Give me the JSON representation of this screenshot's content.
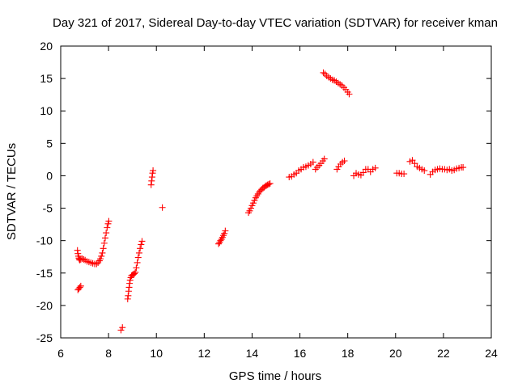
{
  "chart_data": {
    "type": "scatter",
    "title": "Day 321 of 2017, Sidereal Day-to-day VTEC variation (SDTVAR) for receiver kman",
    "xlabel": "GPS time / hours",
    "ylabel": "SDTVAR / TECUs",
    "xlim": [
      6,
      24
    ],
    "ylim": [
      -25,
      20
    ],
    "xticks": [
      6,
      8,
      10,
      12,
      14,
      16,
      18,
      20,
      22,
      24
    ],
    "yticks": [
      -25,
      -20,
      -15,
      -10,
      -5,
      0,
      5,
      10,
      15,
      20
    ],
    "grid": false,
    "marker": "plus",
    "color": "#ff0000",
    "series": [
      {
        "name": "SDTVAR",
        "segments": [
          {
            "x": [
              6.7,
              6.72,
              6.74,
              6.76,
              6.78,
              6.8,
              6.84,
              6.9,
              6.96,
              7.02,
              7.1,
              7.18,
              7.26,
              7.34,
              7.42,
              7.5,
              7.56,
              7.62,
              7.66,
              7.7,
              7.74,
              7.78,
              7.82,
              7.86,
              7.9,
              7.94,
              7.98,
              8.01
            ],
            "y": [
              -11.5,
              -12.0,
              -12.4,
              -12.7,
              -12.9,
              -13.0,
              -12.9,
              -12.8,
              -12.9,
              -13.0,
              -13.2,
              -13.3,
              -13.4,
              -13.5,
              -13.6,
              -13.6,
              -13.4,
              -13.1,
              -12.8,
              -12.4,
              -11.9,
              -11.2,
              -10.4,
              -9.6,
              -8.8,
              -8.0,
              -7.4,
              -7.0
            ]
          },
          {
            "x": [
              6.72,
              6.76,
              6.8,
              6.84
            ],
            "y": [
              -17.6,
              -17.4,
              -17.2,
              -17.0
            ]
          },
          {
            "x": [
              8.52,
              8.58
            ],
            "y": [
              -23.8,
              -23.4
            ]
          },
          {
            "x": [
              8.8,
              8.82,
              8.84,
              8.86,
              8.88,
              8.9,
              8.93,
              8.96,
              9.0,
              9.04,
              9.08,
              9.12,
              9.16,
              9.2,
              9.24,
              9.28,
              9.32,
              9.36,
              9.4
            ],
            "y": [
              -19.0,
              -18.5,
              -17.8,
              -17.2,
              -16.6,
              -16.1,
              -15.7,
              -15.4,
              -15.3,
              -15.2,
              -15.1,
              -14.9,
              -14.2,
              -13.4,
              -12.6,
              -11.9,
              -11.2,
              -10.6,
              -10.1
            ]
          },
          {
            "x": [
              9.78,
              9.8,
              9.82,
              9.84,
              9.86
            ],
            "y": [
              -1.4,
              -0.8,
              -0.2,
              0.4,
              0.8
            ]
          },
          {
            "x": [
              10.25
            ],
            "y": [
              -4.9
            ]
          },
          {
            "x": [
              12.6,
              12.64,
              12.68,
              12.72,
              12.76,
              12.8,
              12.84,
              12.88
            ],
            "y": [
              -10.5,
              -10.3,
              -10.0,
              -9.8,
              -9.5,
              -9.2,
              -8.9,
              -8.5
            ]
          },
          {
            "x": [
              13.85,
              13.9,
              13.95,
              14.0,
              14.05,
              14.1,
              14.15,
              14.2,
              14.25,
              14.3,
              14.35,
              14.4,
              14.45,
              14.5,
              14.55,
              14.6,
              14.65,
              14.7,
              14.75
            ],
            "y": [
              -5.7,
              -5.4,
              -5.0,
              -4.6,
              -4.2,
              -3.8,
              -3.4,
              -3.1,
              -2.8,
              -2.5,
              -2.3,
              -2.1,
              -1.9,
              -1.8,
              -1.6,
              -1.5,
              -1.4,
              -1.3,
              -1.2
            ]
          },
          {
            "x": [
              15.55,
              15.65,
              15.75,
              15.85,
              15.95,
              16.05,
              16.15,
              16.25,
              16.35,
              16.45,
              16.55
            ],
            "y": [
              -0.2,
              -0.1,
              0.2,
              0.4,
              0.8,
              1.0,
              1.3,
              1.4,
              1.6,
              1.8,
              2.1
            ]
          },
          {
            "x": [
              16.65,
              16.72,
              16.8,
              16.88,
              16.96,
              17.02
            ],
            "y": [
              1.0,
              1.3,
              1.6,
              1.9,
              2.3,
              2.6
            ]
          },
          {
            "x": [
              16.98,
              17.05,
              17.12,
              17.2,
              17.28,
              17.36,
              17.44,
              17.52,
              17.6,
              17.68,
              17.76,
              17.84,
              17.92,
              18.0,
              18.06
            ],
            "y": [
              15.9,
              15.7,
              15.4,
              15.2,
              15.0,
              14.8,
              14.7,
              14.5,
              14.3,
              14.1,
              13.9,
              13.6,
              13.3,
              12.9,
              12.6
            ]
          },
          {
            "x": [
              17.55,
              17.62,
              17.7,
              17.78,
              17.86
            ],
            "y": [
              1.0,
              1.4,
              1.8,
              2.1,
              2.3
            ]
          },
          {
            "x": [
              18.25,
              18.35,
              18.45,
              18.55,
              18.65,
              18.75,
              18.85,
              18.95,
              19.05,
              19.15
            ],
            "y": [
              0.0,
              0.4,
              0.2,
              0.1,
              0.5,
              1.0,
              1.0,
              0.6,
              1.0,
              1.2
            ]
          },
          {
            "x": [
              20.05,
              20.15,
              20.25,
              20.35
            ],
            "y": [
              0.4,
              0.4,
              0.3,
              0.3
            ]
          },
          {
            "x": [
              20.6,
              20.7,
              20.8,
              20.9,
              21.0,
              21.1,
              21.2
            ],
            "y": [
              2.2,
              2.4,
              1.9,
              1.4,
              1.2,
              1.0,
              0.8
            ]
          },
          {
            "x": [
              21.45,
              21.55,
              21.65,
              21.75,
              21.85,
              21.95,
              22.05,
              22.15,
              22.25,
              22.35,
              22.45,
              22.55,
              22.65,
              22.75,
              22.82
            ],
            "y": [
              0.2,
              0.6,
              0.9,
              1.0,
              1.1,
              1.0,
              1.0,
              0.9,
              1.0,
              0.8,
              0.9,
              1.1,
              1.2,
              1.3,
              1.3
            ]
          }
        ]
      }
    ]
  }
}
